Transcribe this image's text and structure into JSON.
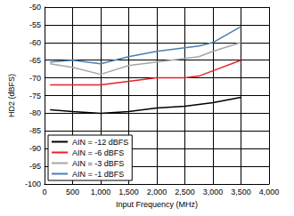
{
  "chart_data": {
    "type": "line",
    "x_label": "Input Frequency (MHz)",
    "y_label": "HD2 (dBFS)",
    "x": [
      100,
      500,
      1000,
      1500,
      2000,
      2500,
      2750,
      3000,
      3500
    ],
    "series": [
      {
        "name": "AIN = -12 dBFS",
        "color": "#000000",
        "values": [
          -79,
          -79.5,
          -80,
          -79.5,
          -78.5,
          -78,
          -77.5,
          -77,
          -75.5
        ]
      },
      {
        "name": "AIN = -6 dBFS",
        "color": "#e8202a",
        "values": [
          -72,
          -72,
          -72,
          -71,
          -70,
          -70,
          -69.5,
          -68,
          -65
        ]
      },
      {
        "name": "AIN = -3 dBFS",
        "color": "#a6a6a6",
        "values": [
          -66,
          -67,
          -69,
          -66.5,
          -65.5,
          -64.5,
          -64,
          -62.5,
          -60
        ]
      },
      {
        "name": "AIN = -1 dBFS",
        "color": "#4a7fb0",
        "values": [
          -65.5,
          -65,
          -66,
          -64,
          -62.5,
          -61.5,
          -61,
          -60,
          -55.5
        ]
      }
    ],
    "xlim": [
      0,
      4000
    ],
    "xticks": [
      0,
      500,
      1000,
      1500,
      2000,
      2500,
      3000,
      3500,
      4000
    ],
    "ylim": [
      -100,
      -50
    ],
    "yticks": [
      -100,
      -95,
      -90,
      -85,
      -80,
      -75,
      -70,
      -65,
      -60,
      -55,
      -50
    ],
    "grid": true,
    "legend": "lower left"
  }
}
